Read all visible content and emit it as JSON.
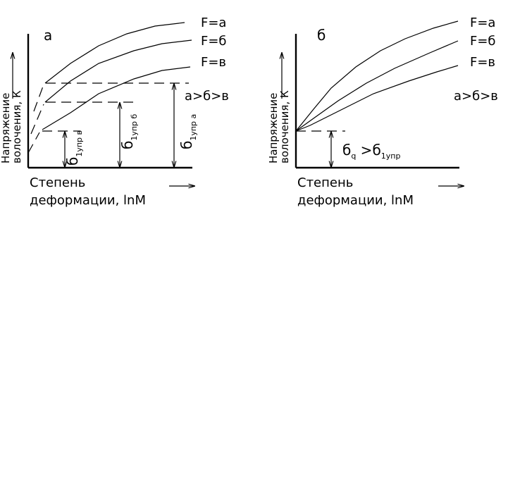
{
  "panels": [
    {
      "label": "а",
      "curve_labels": [
        "F=а",
        "F=б",
        "F=в"
      ],
      "relation": "а>б>в",
      "y_axis_label": [
        "Напряжение",
        "волочения,  К"
      ],
      "x_axis_label": [
        "Степень",
        "деформации,  lnM"
      ],
      "stress_labels": [
        [
          "б",
          "1упр в"
        ],
        [
          "б",
          "1упр б"
        ],
        [
          "б",
          "1упр а"
        ]
      ]
    },
    {
      "label": "б",
      "curve_labels": [
        "F=а",
        "F=б",
        "F=в"
      ],
      "relation": "а>б>в",
      "y_axis_label": [
        "Напряжение",
        "волочения,  К"
      ],
      "x_axis_label": [
        "Степень",
        "деформации,  lnM"
      ],
      "stress_relation": [
        "б",
        "q",
        " >б",
        "1упр"
      ]
    }
  ]
}
